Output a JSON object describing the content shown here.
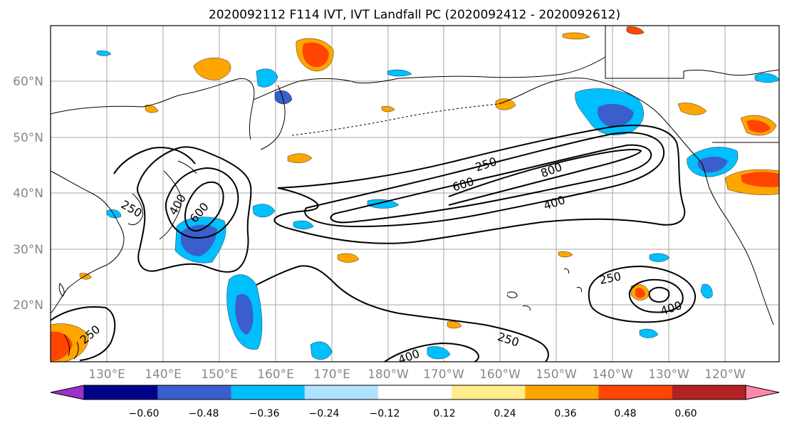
{
  "title": "2020092112 F114 IVT, IVT Landfall PC (2020092412 - 2020092612)",
  "map": {
    "lat_labels": [
      "60°N",
      "50°N",
      "40°N",
      "30°N",
      "20°N"
    ],
    "lon_labels": [
      "130°E",
      "140°E",
      "150°E",
      "160°E",
      "170°E",
      "180°W",
      "170°W",
      "160°W",
      "150°W",
      "140°W",
      "130°W",
      "120°W"
    ]
  },
  "contours": {
    "labels": [
      "250",
      "600",
      "800",
      "400",
      "250",
      "400",
      "600",
      "250",
      "400",
      "250",
      "250",
      "400"
    ],
    "levels": [
      250,
      400,
      600,
      800
    ]
  },
  "colorbar": {
    "tick_labels": [
      "−0.60",
      "−0.48",
      "−0.36",
      "−0.24",
      "−0.12",
      "0.12",
      "0.24",
      "0.36",
      "0.48",
      "0.60"
    ],
    "colors": [
      "#9932cc",
      "#00008b",
      "#3a5fcd",
      "#00bfff",
      "#b0e2ff",
      "#ffffff",
      "#ffec8b",
      "#ffa500",
      "#ff4500",
      "#b22222",
      "#ff88aa"
    ]
  }
}
